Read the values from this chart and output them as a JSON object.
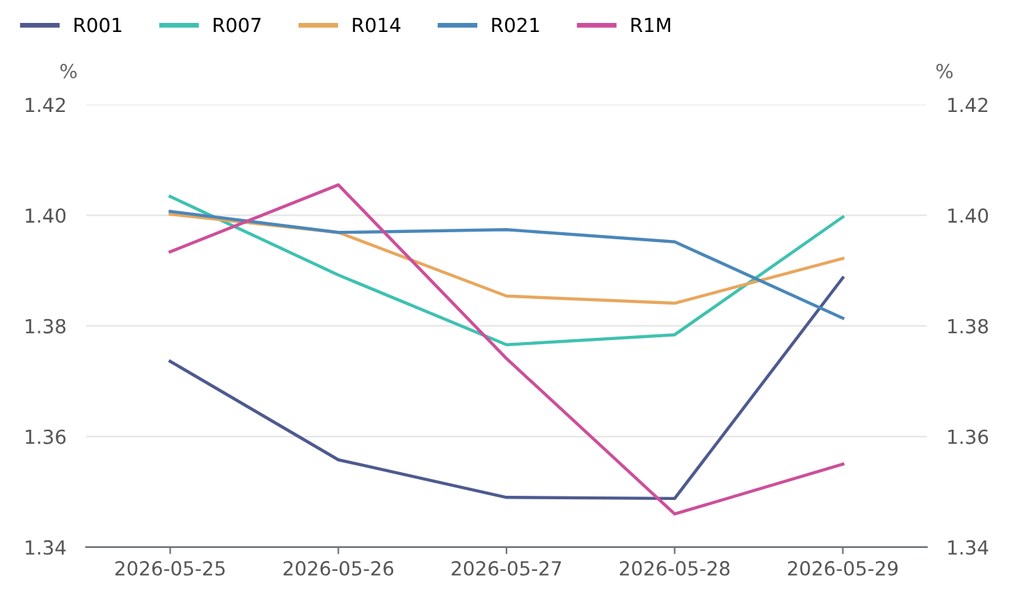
{
  "chart_data": {
    "type": "line",
    "ylabel": "%",
    "y2label": "%",
    "categories": [
      "2026-05-25",
      "2026-05-26",
      "2026-05-27",
      "2026-05-28",
      "2026-05-29"
    ],
    "series": [
      {
        "name": "R001",
        "color": "#4e5a8e",
        "values": [
          1.3736,
          1.3558,
          1.349,
          1.3488,
          1.3887
        ]
      },
      {
        "name": "R007",
        "color": "#3fc1b0",
        "values": [
          1.4034,
          1.3892,
          1.3766,
          1.3784,
          1.3997
        ]
      },
      {
        "name": "R014",
        "color": "#e8a75d",
        "values": [
          1.4002,
          1.3969,
          1.3854,
          1.3841,
          1.3922
        ]
      },
      {
        "name": "R021",
        "color": "#4a87ba",
        "values": [
          1.4007,
          1.3969,
          1.3974,
          1.3952,
          1.3814
        ]
      },
      {
        "name": "R1M",
        "color": "#cc4f9a",
        "values": [
          1.3934,
          1.4055,
          1.3741,
          1.346,
          1.355
        ]
      }
    ],
    "ylim": [
      1.34,
      1.42
    ],
    "yticks": [
      1.34,
      1.36,
      1.38,
      {
        "value": 1.4,
        "label": "1.40"
      },
      1.42
    ],
    "y2lim": [
      1.34,
      1.42
    ],
    "y2ticks": [
      1.34,
      1.36,
      1.38,
      {
        "value": 1.4,
        "label": "1.40"
      },
      1.42
    ],
    "grid": "y",
    "legend": "top left",
    "marker": "none",
    "line_style": "solid"
  }
}
